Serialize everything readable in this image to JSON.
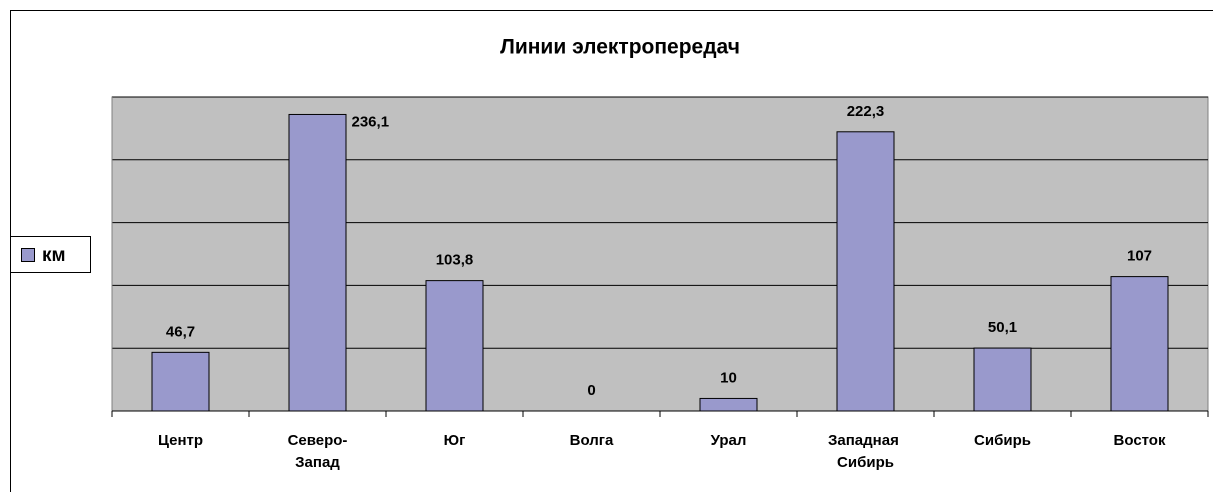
{
  "chart_data": {
    "type": "bar",
    "title": "Линии электропередач",
    "categories": [
      "Центр",
      "Северо-Запад",
      "Юг",
      "Волга",
      "Урал",
      "Западная Сибирь",
      "Сибирь",
      "Восток"
    ],
    "series": [
      {
        "name": "км",
        "color": "#9999cc",
        "values": [
          46.7,
          236.1,
          103.8,
          0,
          10,
          222.3,
          50.1,
          107
        ],
        "value_labels": [
          "46,7",
          "236,1",
          "103,8",
          "0",
          "10",
          "222,3",
          "50,1",
          "107"
        ]
      }
    ],
    "ylim": [
      0,
      250
    ],
    "yticks": [
      0,
      50,
      100,
      150,
      200,
      250
    ],
    "grid": true,
    "legend": "left"
  }
}
